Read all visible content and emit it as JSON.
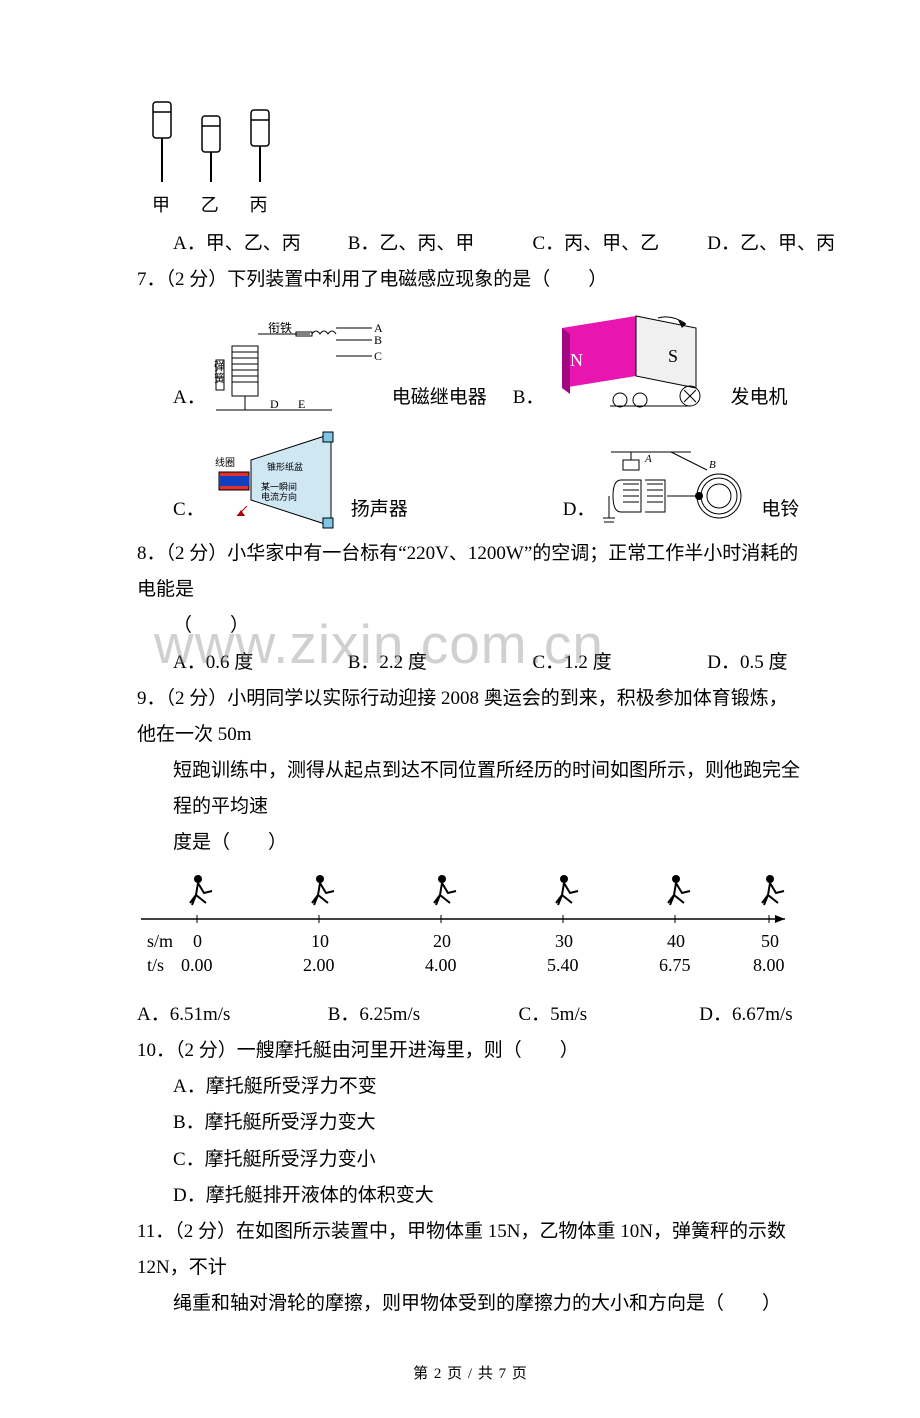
{
  "figures": {
    "bottles": {
      "labels": [
        "甲",
        "乙",
        "丙"
      ]
    }
  },
  "q6": {
    "opts": {
      "A": "A．甲、乙、丙",
      "B": "B．乙、丙、甲",
      "C": "C．丙、甲、乙",
      "D": "D．乙、甲、丙"
    }
  },
  "q7": {
    "stem": "7．（2 分）下列装置中利用了电磁感应现象的是（　　）",
    "cells": {
      "A": {
        "letter": "A．",
        "label": "电磁继电器"
      },
      "B": {
        "letter": "B．",
        "label": "发电机"
      },
      "C": {
        "letter": "C．",
        "label": "扬声器"
      },
      "D": {
        "letter": "D．",
        "label": "电铃"
      }
    }
  },
  "q8": {
    "stem": "8．（2 分）小华家中有一台标有“220V、1200W”的空调；正常工作半小时消耗的电能是",
    "paren": "（　　）",
    "opts": {
      "A": "A．0.6 度",
      "B": "B．2.2 度",
      "C": "C．1.2 度",
      "D": "D．0.5 度"
    }
  },
  "q9": {
    "stem1": "9．（2 分）小明同学以实际行动迎接 2008 奥运会的到来，积极参加体育锻炼，他在一次 50m",
    "stem2": "短跑训练中，测得从起点到达不同位置所经历的时间如图所示，则他跑完全程的平均速",
    "stem3": "度是（　　）",
    "chart": {
      "s_label": "s/m",
      "t_label": "t/s",
      "s_values": [
        "0",
        "10",
        "20",
        "30",
        "40",
        "50"
      ],
      "t_values": [
        "0.00",
        "2.00",
        "4.00",
        "5.40",
        "6.75",
        "8.00"
      ]
    },
    "opts": {
      "A": "A．6.51m/s",
      "B": "B．6.25m/s",
      "C": "C．5m/s",
      "D": "D．6.67m/s"
    }
  },
  "q10": {
    "stem": "10．（2 分）一艘摩托艇由河里开进海里，则（　　）",
    "A": "A．摩托艇所受浮力不变",
    "B": "B．摩托艇所受浮力变大",
    "C": "C．摩托艇所受浮力变小",
    "D": "D．摩托艇排开液体的体积变大"
  },
  "q11": {
    "stem1": "11．（2 分）在如图所示装置中，甲物体重 15N，乙物体重 10N，弹簧秤的示数 12N，不计",
    "stem2": "绳重和轴对滑轮的摩擦，则甲物体受到的摩擦力的大小和方向是（　　）"
  },
  "footer": {
    "text": "第 2 页 / 共 7 页"
  },
  "watermark": "www.zixin.com.cn",
  "colors": {
    "magenta": "#e815b0",
    "dark": "#000000",
    "gray": "#888888",
    "paleblue": "#cfe7f3",
    "red": "#c02020",
    "navy": "#0000aa"
  }
}
